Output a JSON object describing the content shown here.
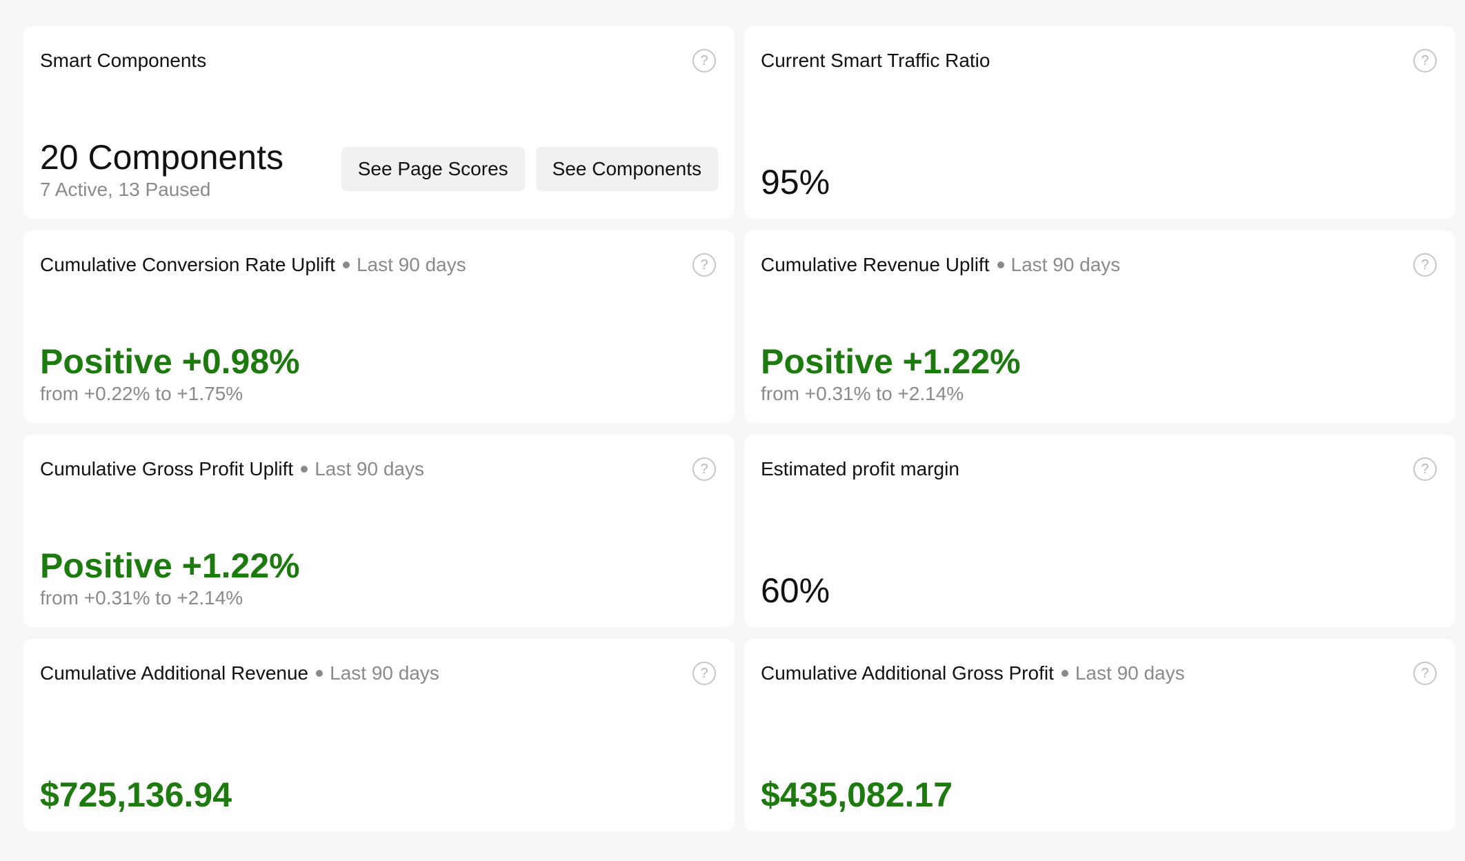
{
  "cards": [
    {
      "title": "Smart Components",
      "count_label": "20 Components",
      "status": "7 Active, 13 Paused",
      "buttons": {
        "page_scores": "See Page Scores",
        "components": "See Components"
      }
    },
    {
      "title": "Current Smart Traffic Ratio",
      "value": "95%"
    },
    {
      "title": "Cumulative Conversion Rate Uplift",
      "period": "Last 90 days",
      "value": "Positive +0.98%",
      "range": "from +0.22% to +1.75%"
    },
    {
      "title": "Cumulative Revenue Uplift",
      "period": "Last 90 days",
      "value": "Positive +1.22%",
      "range": "from +0.31% to +2.14%"
    },
    {
      "title": "Cumulative Gross Profit Uplift",
      "period": "Last 90 days",
      "value": "Positive +1.22%",
      "range": "from +0.31% to +2.14%"
    },
    {
      "title": "Estimated profit margin",
      "value": "60%"
    },
    {
      "title": "Cumulative Additional Revenue",
      "period": "Last 90 days",
      "value": "$725,136.94"
    },
    {
      "title": "Cumulative Additional Gross Profit",
      "period": "Last 90 days",
      "value": "$435,082.17"
    }
  ],
  "help_icon_glyph": "?",
  "colors": {
    "positive": "#1d7a0f",
    "muted": "#8a8a8a",
    "background": "#f7f7f7",
    "card": "#ffffff"
  }
}
